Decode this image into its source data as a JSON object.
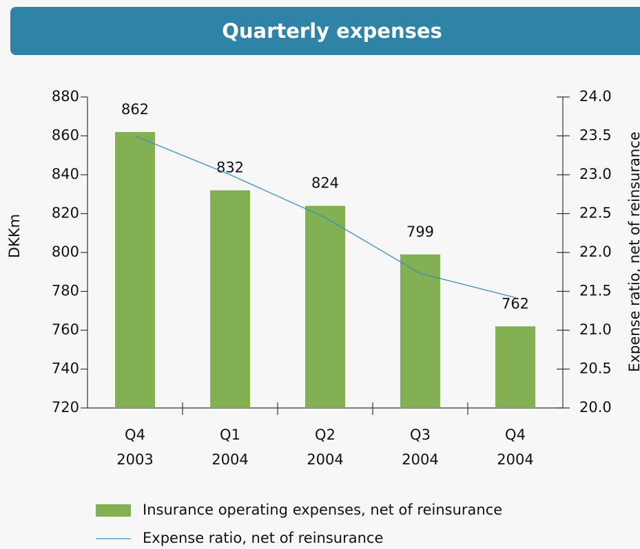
{
  "chart_data": {
    "type": "bar_line",
    "title": "Quarterly expenses",
    "categories": [
      [
        "Q4",
        "2003"
      ],
      [
        "Q1",
        "2004"
      ],
      [
        "Q2",
        "2004"
      ],
      [
        "Q3",
        "2004"
      ],
      [
        "Q4",
        "2004"
      ]
    ],
    "ylabel": "DKKm",
    "y2label": "Expense ratio, net of reinsurance",
    "ylim": [
      720,
      880
    ],
    "yticks": [
      720,
      740,
      760,
      780,
      800,
      820,
      840,
      860,
      880
    ],
    "y2lim": [
      20,
      24
    ],
    "y2ticks": [
      {
        "value": 20,
        "label": "20.0"
      },
      20.5,
      {
        "value": 21,
        "label": "21.0"
      },
      21.5,
      {
        "value": 22,
        "label": "22.0"
      },
      22.5,
      {
        "value": 23,
        "label": "23.0"
      },
      23.5,
      {
        "value": 24,
        "label": "24.0"
      }
    ],
    "series": [
      {
        "name": "Insurance operating expenses, net of reinsurance",
        "type": "bar",
        "color": "#82b052",
        "values": [
          862,
          832,
          824,
          799,
          762
        ],
        "show_value_labels": true
      },
      {
        "name": "Expense ratio, net of reinsurance",
        "type": "line",
        "axis": "y2",
        "color": "#3a8fc0",
        "values": [
          23.5,
          23.0,
          22.45,
          21.73,
          21.42
        ]
      }
    ]
  }
}
